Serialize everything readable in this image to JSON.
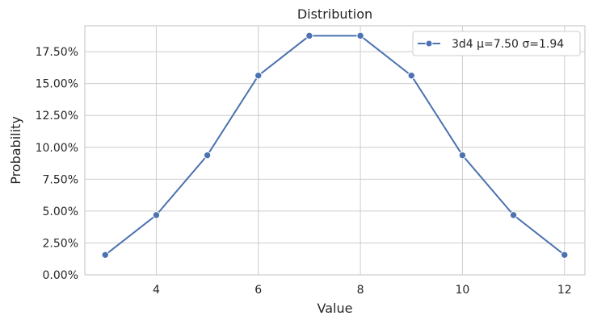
{
  "chart_data": {
    "type": "line",
    "title": "Distribution",
    "xlabel": "Value",
    "ylabel": "Probability",
    "xlim": [
      2.6,
      12.4
    ],
    "ylim": [
      0,
      19.53
    ],
    "x_ticks": [
      4,
      6,
      8,
      10,
      12
    ],
    "x_tick_labels": [
      "4",
      "6",
      "8",
      "10",
      "12"
    ],
    "y_ticks": [
      0,
      2.5,
      5,
      7.5,
      10,
      12.5,
      15,
      17.5
    ],
    "y_tick_labels": [
      "0.00%",
      "2.50%",
      "5.00%",
      "7.50%",
      "10.00%",
      "12.50%",
      "15.00%",
      "17.50%"
    ],
    "grid": true,
    "legend_position": "top-right",
    "series": [
      {
        "name": "3d4 μ=7.50 σ=1.94",
        "color": "#4c72b0",
        "marker": "circle",
        "x": [
          3,
          4,
          5,
          6,
          7,
          8,
          9,
          10,
          11,
          12
        ],
        "y": [
          1.5625,
          4.6875,
          9.375,
          15.625,
          18.75,
          18.75,
          15.625,
          9.375,
          4.6875,
          1.5625
        ]
      }
    ]
  }
}
